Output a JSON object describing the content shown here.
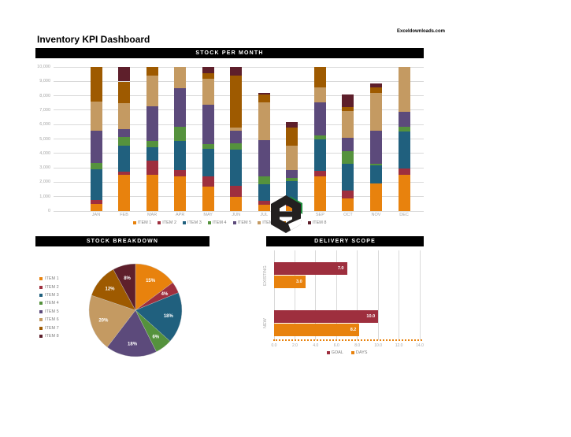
{
  "page": {
    "watermark": "Exceldownloads.com",
    "title": "Inventory KPI Dashboard"
  },
  "sections": {
    "stock_per_month_header": "STOCK PER MONTH",
    "stock_breakdown_header": "STOCK BREAKDOWN",
    "delivery_scope_header": "DELIVERY SCOPE"
  },
  "colors": {
    "header_bg": "#000000",
    "header_text": "#ffffff",
    "gridline": "#d9d9d9",
    "axis_text": "#a6a6a6",
    "legend_text": "#7f7f7f",
    "logo_dark": "#232020",
    "logo_green": "#1E8C3C"
  },
  "chart_data": [
    {
      "id": "stock_per_month",
      "type": "bar",
      "stacked": true,
      "title": "STOCK PER MONTH",
      "categories": [
        "JAN",
        "FEB",
        "MAR",
        "APR",
        "MAY",
        "JUN",
        "JUL",
        "AUG",
        "SEP",
        "OCT",
        "NOV",
        "DEC"
      ],
      "series": [
        {
          "name": "ITEM 1",
          "color": "#E8820D",
          "values": [
            500,
            2500,
            2500,
            2400,
            1700,
            1000,
            430,
            340,
            2400,
            860,
            1900,
            2500
          ]
        },
        {
          "name": "ITEM 2",
          "color": "#9E2F3E",
          "values": [
            250,
            260,
            1000,
            430,
            700,
            770,
            260,
            260,
            400,
            570,
            0,
            430
          ]
        },
        {
          "name": "ITEM 3",
          "color": "#20607E",
          "values": [
            2150,
            1800,
            950,
            2060,
            1900,
            2500,
            1170,
            1460,
            2180,
            1840,
            1250,
            2570
          ]
        },
        {
          "name": "ITEM 4",
          "color": "#55923D",
          "values": [
            430,
            600,
            430,
            950,
            350,
            430,
            550,
            260,
            260,
            860,
            120,
            350
          ]
        },
        {
          "name": "ITEM 5",
          "color": "#5C4A7B",
          "values": [
            2270,
            520,
            2400,
            2660,
            2740,
            860,
            2490,
            520,
            2320,
            980,
            2320,
            1030
          ]
        },
        {
          "name": "ITEM 6",
          "color": "#C49A62",
          "values": [
            2000,
            1800,
            2140,
            1500,
            1800,
            260,
            2660,
            1720,
            1030,
            1850,
            2620,
            3120
          ]
        },
        {
          "name": "ITEM 7",
          "color": "#9E5A00",
          "values": [
            2400,
            1510,
            580,
            0,
            350,
            3600,
            520,
            1230,
            1410,
            260,
            380,
            0
          ]
        },
        {
          "name": "ITEM 8",
          "color": "#5E1F2B",
          "values": [
            0,
            1010,
            0,
            0,
            460,
            580,
            120,
            360,
            0,
            860,
            260,
            0
          ]
        }
      ],
      "ylim": [
        0,
        10000
      ],
      "ytick_step": 1000,
      "ytick_labels": [
        "0",
        "1,000",
        "2,000",
        "3,000",
        "4,000",
        "5,000",
        "6,000",
        "7,000",
        "8,000",
        "9,000",
        "10,000"
      ],
      "grid": true,
      "legend_position": "bottom"
    },
    {
      "id": "stock_breakdown",
      "type": "pie",
      "title": "STOCK BREAKDOWN",
      "labels": [
        "ITEM 1",
        "ITEM 2",
        "ITEM 3",
        "ITEM 4",
        "ITEM 5",
        "ITEM 6",
        "ITEM 7",
        "ITEM 8"
      ],
      "values_percent": [
        15,
        4,
        18,
        6,
        18,
        20,
        12,
        8
      ],
      "slice_labels": [
        "15%",
        "4%",
        "18%",
        "6%",
        "18%",
        "20%",
        "12%",
        "8%"
      ],
      "colors": [
        "#E8820D",
        "#9E2F3E",
        "#20607E",
        "#55923D",
        "#5C4A7B",
        "#C49A62",
        "#9E5A00",
        "#5E1F2B"
      ],
      "start_angle": "top",
      "direction": "clockwise",
      "legend_position": "left"
    },
    {
      "id": "delivery_scope",
      "type": "bar",
      "orientation": "horizontal",
      "title": "DELIVERY SCOPE",
      "categories": [
        "EXISTING",
        "NEW"
      ],
      "series": [
        {
          "name": "GOAL",
          "color": "#9E2F3E",
          "values": [
            7.0,
            10.0
          ],
          "labels": [
            "7.0",
            "10.0"
          ]
        },
        {
          "name": "DAYS",
          "color": "#E8820D",
          "values": [
            3.0,
            8.2
          ],
          "labels": [
            "3.0",
            "8.2"
          ]
        }
      ],
      "xlim": [
        0,
        14
      ],
      "xtick_step": 2,
      "xtick_labels": [
        "0.0",
        "2.0",
        "4.0",
        "6.0",
        "8.0",
        "10.0",
        "12.0",
        "14.0"
      ],
      "grid": true,
      "legend_position": "bottom"
    }
  ]
}
